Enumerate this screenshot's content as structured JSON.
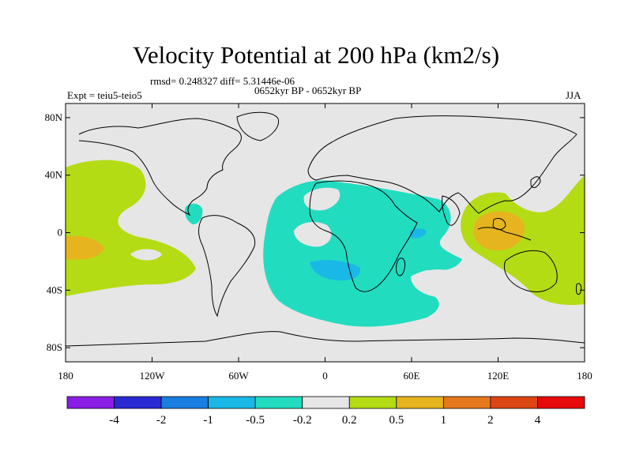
{
  "title": "Velocity Potential at 200 hPa (km2/s)",
  "stats": "rmsd= 0.248327 diff= 5.31446e-06",
  "experiment": "Expt = teiu5-teio5",
  "period": "0652kyr BP - 0652kyr BP",
  "season": "JJA",
  "lat_labels": [
    {
      "value": 80,
      "label": "80N"
    },
    {
      "value": 40,
      "label": "40N"
    },
    {
      "value": 0,
      "label": "0"
    },
    {
      "value": -40,
      "label": "40S"
    },
    {
      "value": -80,
      "label": "80S"
    }
  ],
  "lon_labels": [
    {
      "value": -180,
      "label": "180"
    },
    {
      "value": -120,
      "label": "120W"
    },
    {
      "value": -60,
      "label": "60W"
    },
    {
      "value": 0,
      "label": "0"
    },
    {
      "value": 60,
      "label": "60E"
    },
    {
      "value": 120,
      "label": "120E"
    },
    {
      "value": 180,
      "label": "180"
    }
  ],
  "colorbar": {
    "colors": [
      "#8a1ee6",
      "#2a2ad4",
      "#1a7ee0",
      "#1ab8e6",
      "#22dcc0",
      "#e6e6e6",
      "#b4dc14",
      "#e6b41e",
      "#e6781e",
      "#dc4614",
      "#e60a0a"
    ],
    "labels": [
      "-4",
      "-2",
      "-1",
      "-0.5",
      "-0.2",
      "0.2",
      "0.5",
      "1",
      "2",
      "4"
    ]
  },
  "colors": {
    "background_field": "#e6e6e6",
    "neg_02_05": "#22dcc0",
    "neg_05_1": "#1ab8e6",
    "pos_02_05": "#b4dc14",
    "pos_05_1": "#e6b41e",
    "coast": "#000000"
  }
}
